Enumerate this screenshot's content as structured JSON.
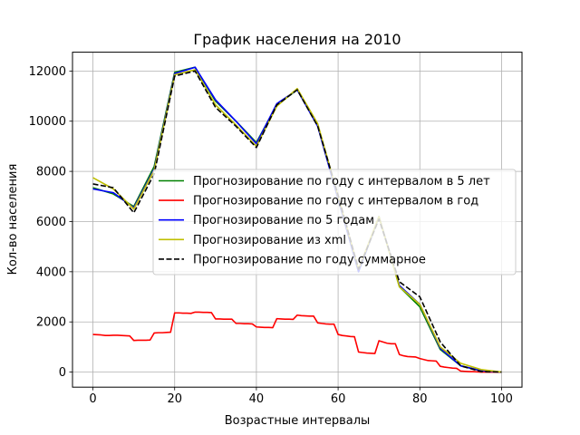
{
  "chart_data": {
    "type": "line",
    "title": "График населения на 2010",
    "xlabel": "Возрастные интервалы",
    "ylabel": "Кол-во населения",
    "xlim": [
      -5,
      105
    ],
    "ylim": [
      -600,
      12750
    ],
    "xticks": [
      0,
      20,
      40,
      60,
      80,
      100
    ],
    "yticks": [
      0,
      2000,
      4000,
      6000,
      8000,
      10000,
      12000
    ],
    "grid": true,
    "legend_position": "center-right",
    "series": [
      {
        "name": "Прогнозирование по году с интервалом в 5 лет",
        "color": "#008000",
        "dash": "solid",
        "x": [
          0,
          5,
          10,
          15,
          20,
          25,
          30,
          35,
          40,
          45,
          50,
          55,
          60,
          65,
          70,
          75,
          80,
          85,
          90,
          95,
          100
        ],
        "y": [
          7350,
          7100,
          6600,
          8200,
          11950,
          12150,
          10800,
          10000,
          9150,
          10650,
          11250,
          9850,
          6900,
          4000,
          6200,
          3400,
          2600,
          900,
          250,
          50,
          0
        ]
      },
      {
        "name": "Прогнозирование по году с интервалом в год",
        "color": "#ff0000",
        "dash": "solid",
        "x": [
          0,
          1,
          2,
          3,
          4,
          5,
          6,
          7,
          8,
          9,
          10,
          11,
          12,
          13,
          14,
          15,
          16,
          17,
          18,
          19,
          20,
          21,
          22,
          23,
          24,
          25,
          26,
          27,
          28,
          29,
          30,
          31,
          32,
          33,
          34,
          35,
          36,
          37,
          38,
          39,
          40,
          41,
          42,
          43,
          44,
          45,
          46,
          47,
          48,
          49,
          50,
          51,
          52,
          53,
          54,
          55,
          56,
          57,
          58,
          59,
          60,
          61,
          62,
          63,
          64,
          65,
          66,
          67,
          68,
          69,
          70,
          71,
          72,
          73,
          74,
          75,
          76,
          77,
          78,
          79,
          80,
          81,
          82,
          83,
          84,
          85,
          86,
          87,
          88,
          89,
          90,
          91,
          92,
          93,
          94,
          95,
          96,
          97,
          98,
          99,
          100
        ],
        "y": [
          1500,
          1490,
          1480,
          1460,
          1460,
          1470,
          1470,
          1460,
          1450,
          1440,
          1260,
          1270,
          1270,
          1270,
          1280,
          1560,
          1570,
          1570,
          1580,
          1590,
          2360,
          2360,
          2350,
          2350,
          2340,
          2390,
          2390,
          2380,
          2380,
          2370,
          2120,
          2120,
          2110,
          2110,
          2110,
          1940,
          1940,
          1930,
          1930,
          1920,
          1800,
          1790,
          1780,
          1780,
          1770,
          2130,
          2120,
          2110,
          2110,
          2100,
          2270,
          2250,
          2240,
          2230,
          2230,
          1960,
          1940,
          1920,
          1910,
          1910,
          1500,
          1460,
          1440,
          1420,
          1410,
          800,
          780,
          760,
          750,
          740,
          1250,
          1200,
          1150,
          1130,
          1130,
          700,
          650,
          620,
          610,
          600,
          540,
          500,
          460,
          450,
          440,
          230,
          200,
          180,
          160,
          150,
          40,
          30,
          20,
          20,
          10,
          0,
          0,
          0,
          0,
          0,
          0
        ]
      },
      {
        "name": "Прогнозирование по 5 годам",
        "color": "#0000ff",
        "dash": "solid",
        "x": [
          0,
          5,
          10,
          15,
          20,
          25,
          30,
          35,
          40,
          45,
          50,
          55,
          60,
          65,
          70,
          75,
          80,
          85,
          90,
          95,
          100
        ],
        "y": [
          7300,
          7150,
          6550,
          8100,
          11900,
          12150,
          10850,
          10000,
          9100,
          10700,
          11250,
          9800,
          6900,
          4000,
          6200,
          3450,
          2700,
          950,
          250,
          60,
          0
        ]
      },
      {
        "name": "Прогнозирование из xml",
        "color": "#bfbf00",
        "dash": "solid",
        "x": [
          0,
          5,
          10,
          15,
          20,
          25,
          30,
          35,
          40,
          45,
          50,
          55,
          60,
          65,
          70,
          75,
          80,
          85,
          90,
          95,
          100
        ],
        "y": [
          7750,
          7300,
          6500,
          8050,
          11850,
          12050,
          10650,
          9850,
          9000,
          10600,
          11300,
          9900,
          7000,
          4100,
          6200,
          3400,
          2700,
          1000,
          350,
          100,
          0
        ]
      },
      {
        "name": "Прогнозирование по году суммарное",
        "color": "#000000",
        "dash": "dashed",
        "x": [
          0,
          5,
          10,
          15,
          20,
          25,
          30,
          35,
          40,
          45,
          50,
          55,
          60,
          65,
          70,
          75,
          80,
          85,
          90,
          95,
          100
        ],
        "y": [
          7500,
          7350,
          6350,
          7900,
          11800,
          12000,
          10550,
          9800,
          8950,
          10650,
          11250,
          9800,
          7050,
          4100,
          6100,
          3600,
          3000,
          1200,
          250,
          20,
          0
        ]
      }
    ]
  }
}
